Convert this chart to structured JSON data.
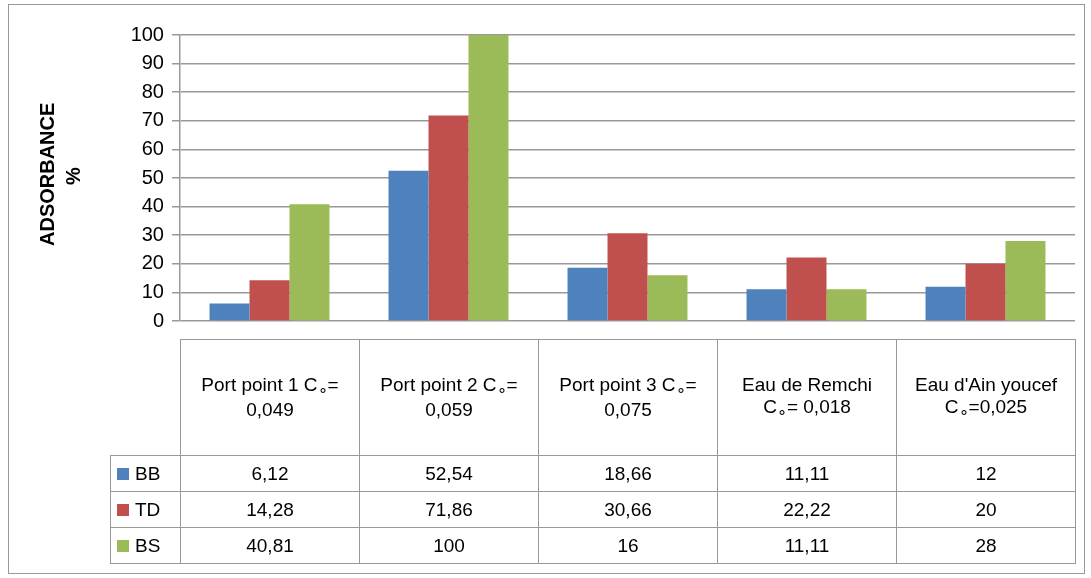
{
  "chart_data": {
    "type": "bar",
    "ylabel": "ADSORBANCE %",
    "categories": [
      "Port point 1 C$_{∘}$= 0,049",
      "Port point 2 C$_{∘}$= 0,059",
      "Port point 3 C$_{∘}$= 0,075",
      "Eau de Remchi C$_{∘}$= 0,018",
      "Eau d'Ain youcef C$_{∘}$=0,025"
    ],
    "series": [
      {
        "name": "BB",
        "color": "#4f81bd",
        "values": [
          6.12,
          52.54,
          18.66,
          11.11,
          12
        ],
        "value_labels": [
          "6,12",
          "52,54",
          "18,66",
          "11,11",
          "12"
        ]
      },
      {
        "name": "TD",
        "color": "#c0504d",
        "values": [
          14.28,
          71.86,
          30.66,
          22.22,
          20
        ],
        "value_labels": [
          "14,28",
          "71,86",
          "30,66",
          "22,22",
          "20"
        ]
      },
      {
        "name": "BS",
        "color": "#9bbb59",
        "values": [
          40.81,
          100,
          16,
          11.11,
          28
        ],
        "value_labels": [
          "40,81",
          "100",
          "16",
          "11,11",
          "28"
        ]
      }
    ],
    "ylim": [
      0,
      100
    ],
    "yticks": [
      0,
      10,
      20,
      30,
      40,
      50,
      60,
      70,
      80,
      90,
      100
    ],
    "grid": "y",
    "legend": "bottom"
  }
}
